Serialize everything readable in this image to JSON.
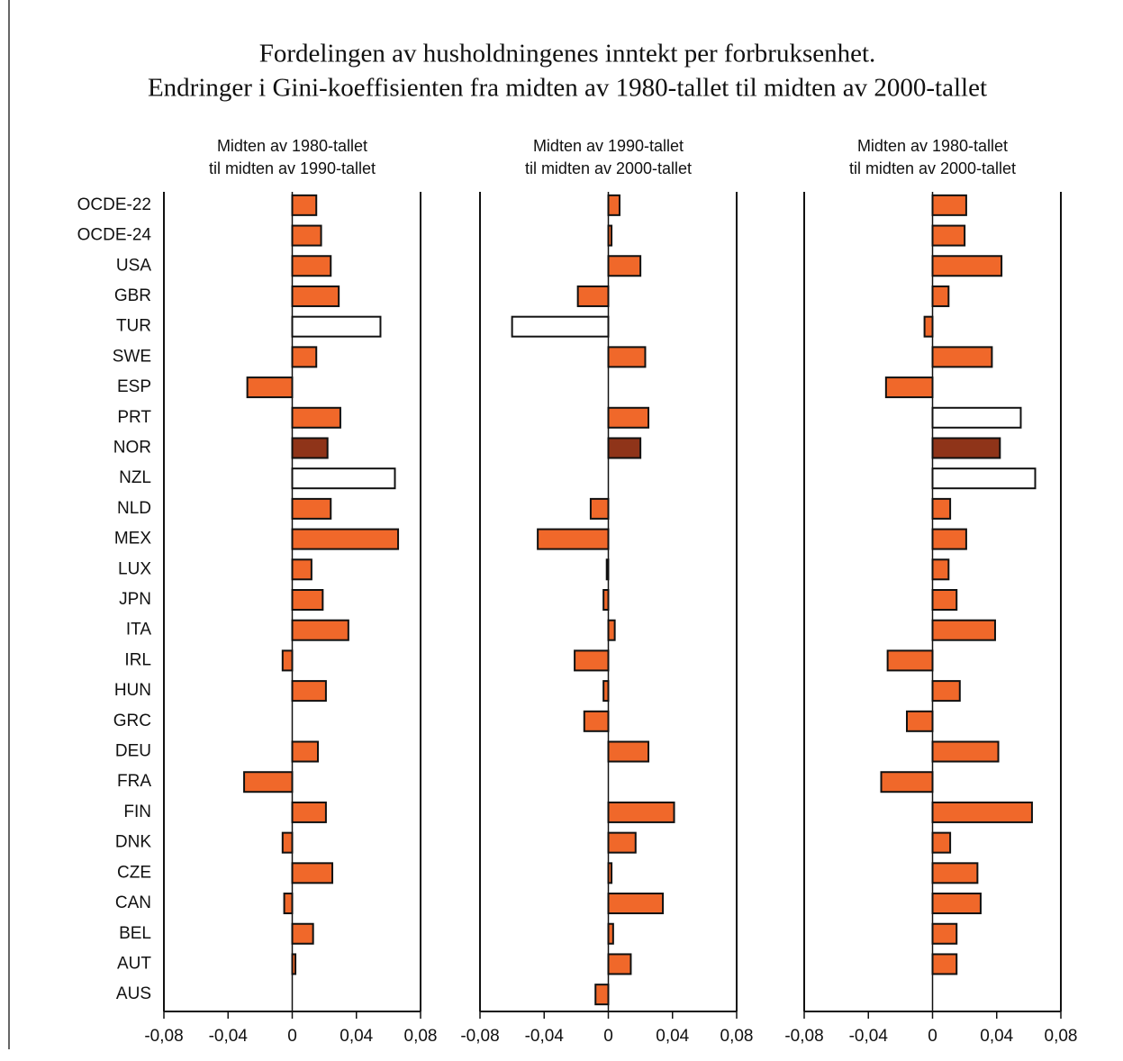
{
  "title": [
    "Fordelingen av husholdningenes inntekt per forbruksenhet.",
    "Endringer i Gini-koeffisienten fra midten av 1980-tallet til midten av 2000-tallet"
  ],
  "chart_data": [
    {
      "type": "bar",
      "orientation": "horizontal",
      "title": [
        "Midten av 1980-tallet",
        "til midten av 1990-tallet"
      ],
      "categories": [
        "OCDE-22",
        "OCDE-24",
        "USA",
        "GBR",
        "TUR",
        "SWE",
        "ESP",
        "PRT",
        "NOR",
        "NZL",
        "NLD",
        "MEX",
        "LUX",
        "JPN",
        "ITA",
        "IRL",
        "HUN",
        "GRC",
        "DEU",
        "FRA",
        "FIN",
        "DNK",
        "CZE",
        "CAN",
        "BEL",
        "AUT",
        "AUS"
      ],
      "values": [
        0.015,
        0.018,
        0.024,
        0.029,
        0.055,
        0.015,
        -0.028,
        0.03,
        0.022,
        0.064,
        0.024,
        0.066,
        0.012,
        0.019,
        0.035,
        -0.006,
        0.021,
        null,
        0.016,
        -0.03,
        0.021,
        -0.006,
        0.025,
        -0.005,
        0.013,
        0.002,
        null
      ],
      "colors": [
        "#f0682a",
        "#f0682a",
        "#f0682a",
        "#f0682a",
        "#ffffff",
        "#f0682a",
        "#f0682a",
        "#f0682a",
        "#8f3419",
        "#ffffff",
        "#f0682a",
        "#f0682a",
        "#f0682a",
        "#f0682a",
        "#f0682a",
        "#f0682a",
        "#f0682a",
        "#f0682a",
        "#f0682a",
        "#f0682a",
        "#f0682a",
        "#f0682a",
        "#f0682a",
        "#f0682a",
        "#f0682a",
        "#f0682a",
        "#f0682a"
      ],
      "xlim": [
        -0.08,
        0.08
      ],
      "xticks": [
        {
          "value": -0.08,
          "label": "-0,08"
        },
        {
          "value": -0.04,
          "label": "-0,04"
        },
        0,
        {
          "value": 0.04,
          "label": "0,04"
        },
        {
          "value": 0.08,
          "label": "0,08"
        }
      ]
    },
    {
      "type": "bar",
      "orientation": "horizontal",
      "title": [
        "Midten av 1990-tallet",
        "til midten av 2000-tallet"
      ],
      "values": [
        0.007,
        0.002,
        0.02,
        -0.019,
        -0.06,
        0.023,
        null,
        0.025,
        0.02,
        null,
        -0.011,
        -0.044,
        -0.001,
        -0.003,
        0.004,
        -0.021,
        -0.003,
        -0.015,
        0.025,
        null,
        0.041,
        0.017,
        0.002,
        0.034,
        0.003,
        0.014,
        -0.008
      ],
      "colors": [
        "#f0682a",
        "#f0682a",
        "#f0682a",
        "#f0682a",
        "#ffffff",
        "#f0682a",
        "#f0682a",
        "#f0682a",
        "#8f3419",
        "#ffffff",
        "#f0682a",
        "#f0682a",
        "#f0682a",
        "#f0682a",
        "#f0682a",
        "#f0682a",
        "#f0682a",
        "#f0682a",
        "#f0682a",
        "#f0682a",
        "#f0682a",
        "#f0682a",
        "#f0682a",
        "#f0682a",
        "#f0682a",
        "#f0682a",
        "#f0682a"
      ],
      "xlim": [
        -0.08,
        0.08
      ],
      "xticks": [
        {
          "value": -0.08,
          "label": "-0,08"
        },
        {
          "value": -0.04,
          "label": "-0,04"
        },
        0,
        {
          "value": 0.04,
          "label": "0,04"
        },
        {
          "value": 0.08,
          "label": "0,08"
        }
      ]
    },
    {
      "type": "bar",
      "orientation": "horizontal",
      "title": [
        "Midten av 1980-tallet",
        "til midten av 2000-tallet"
      ],
      "values": [
        0.021,
        0.02,
        0.043,
        0.01,
        -0.005,
        0.037,
        -0.029,
        0.055,
        0.042,
        0.064,
        0.011,
        0.021,
        0.01,
        0.015,
        0.039,
        -0.028,
        0.017,
        -0.016,
        0.041,
        -0.032,
        0.062,
        0.011,
        0.028,
        0.03,
        0.015,
        0.015,
        null
      ],
      "colors": [
        "#f0682a",
        "#f0682a",
        "#f0682a",
        "#f0682a",
        "#f0682a",
        "#f0682a",
        "#f0682a",
        "#ffffff",
        "#8f3419",
        "#ffffff",
        "#f0682a",
        "#f0682a",
        "#f0682a",
        "#f0682a",
        "#f0682a",
        "#f0682a",
        "#f0682a",
        "#f0682a",
        "#f0682a",
        "#f0682a",
        "#f0682a",
        "#f0682a",
        "#f0682a",
        "#f0682a",
        "#f0682a",
        "#f0682a",
        "#f0682a"
      ],
      "xlim": [
        -0.08,
        0.08
      ],
      "xticks": [
        {
          "value": -0.08,
          "label": "-0,08"
        },
        {
          "value": -0.04,
          "label": "-0,04"
        },
        0,
        {
          "value": 0.04,
          "label": "0,04"
        },
        {
          "value": 0.08,
          "label": "0,08"
        }
      ]
    }
  ]
}
